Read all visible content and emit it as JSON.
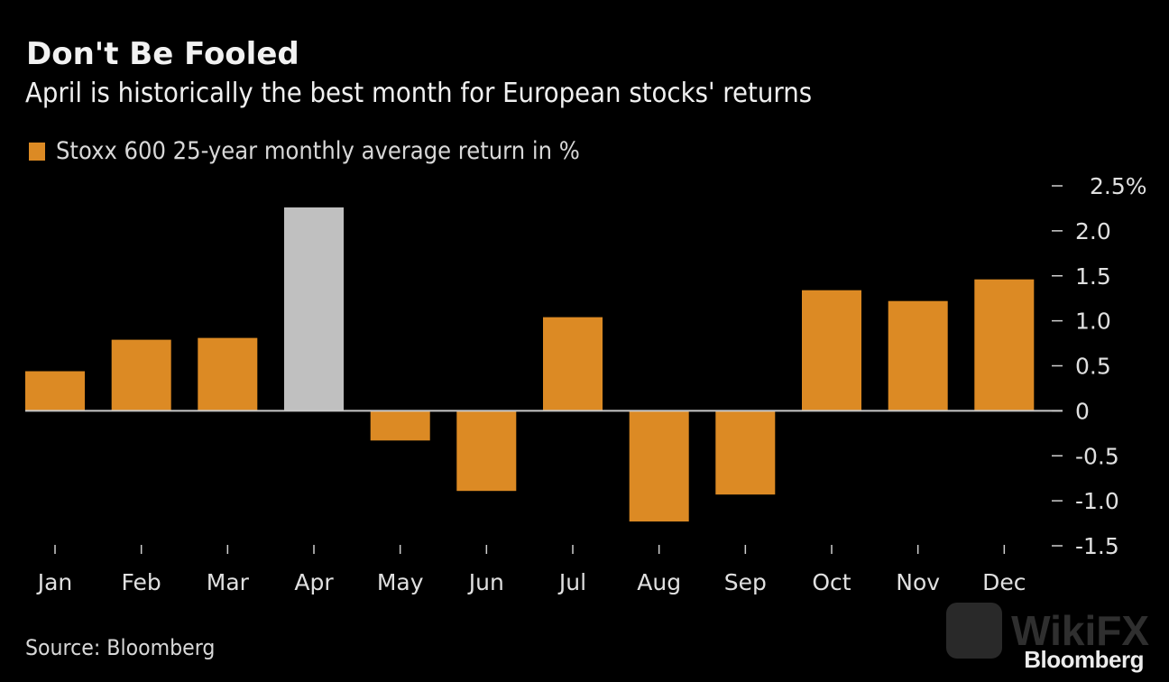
{
  "header": {
    "title": "Don't Be Fooled",
    "subtitle": "April is historically the best month for European stocks' returns"
  },
  "legend": {
    "label": "Stoxx 600 25-year monthly average return in %",
    "color": "#dc8a24"
  },
  "footer": {
    "source": "Source: Bloomberg",
    "brand": "Bloomberg",
    "watermark": "WikiFX"
  },
  "chart_data": {
    "type": "bar",
    "title": "Don't Be Fooled",
    "subtitle": "April is historically the best month for European stocks' returns",
    "xlabel": "",
    "ylabel": "",
    "categories": [
      "Jan",
      "Feb",
      "Mar",
      "Apr",
      "May",
      "Jun",
      "Jul",
      "Aug",
      "Sep",
      "Oct",
      "Nov",
      "Dec"
    ],
    "series": [
      {
        "name": "Stoxx 600 25-year monthly average return in %",
        "values": [
          0.44,
          0.79,
          0.81,
          2.26,
          -0.33,
          -0.89,
          1.04,
          -1.23,
          -0.93,
          1.34,
          1.22,
          1.46
        ]
      }
    ],
    "colors": {
      "default": "#dc8a24",
      "highlight": "#c0c0c0",
      "highlight_category": "Apr"
    },
    "ylim": [
      -1.5,
      2.5
    ],
    "yticks": [
      2.5,
      2.0,
      1.5,
      1.0,
      0.5,
      0,
      -0.5,
      -1.0,
      -1.5
    ],
    "ytick_labels": [
      "2.5%",
      "2.0",
      "1.5",
      "1.0",
      "0.5",
      "0",
      "-0.5",
      "-1.0",
      "-1.5"
    ],
    "y_axis_side": "right",
    "grid": false,
    "legend_position": "top-left"
  }
}
